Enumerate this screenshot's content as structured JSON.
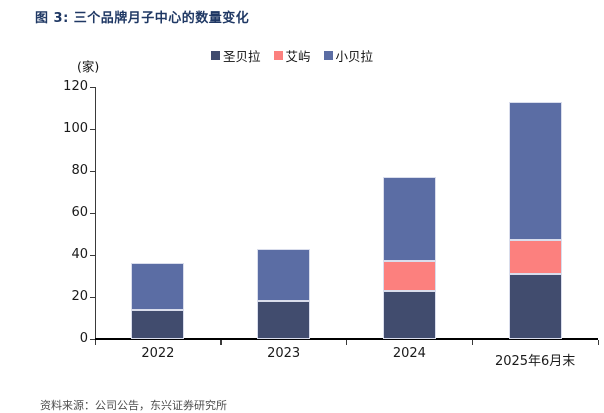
{
  "page": {
    "title": "图 3: 三个品牌月子中心的数量变化",
    "source_note": "资料来源：公司公告，东兴证券研究所"
  },
  "chart_data": {
    "type": "bar",
    "stacked": true,
    "title": "图 3: 三个品牌月子中心的数量变化",
    "unit_label": "(家)",
    "categories": [
      "2022",
      "2023",
      "2024",
      "2025年6月末"
    ],
    "series": [
      {
        "name": "圣贝拉",
        "color": "#414C6E",
        "values": [
          14,
          18,
          23,
          31
        ]
      },
      {
        "name": "艾屿",
        "color": "#FC807E",
        "values": [
          0,
          0,
          14,
          16
        ]
      },
      {
        "name": "小贝拉",
        "color": "#5B6DA4",
        "values": [
          22,
          25,
          40,
          66
        ]
      }
    ],
    "totals": [
      36,
      43,
      77,
      113
    ],
    "ylim": [
      0,
      120
    ],
    "yticks": [
      0,
      20,
      40,
      60,
      80,
      100,
      120
    ],
    "legend_position": "top",
    "grid": false,
    "colors": {
      "title_accent": "#1F3864",
      "axis": "#3a3a3a"
    }
  }
}
